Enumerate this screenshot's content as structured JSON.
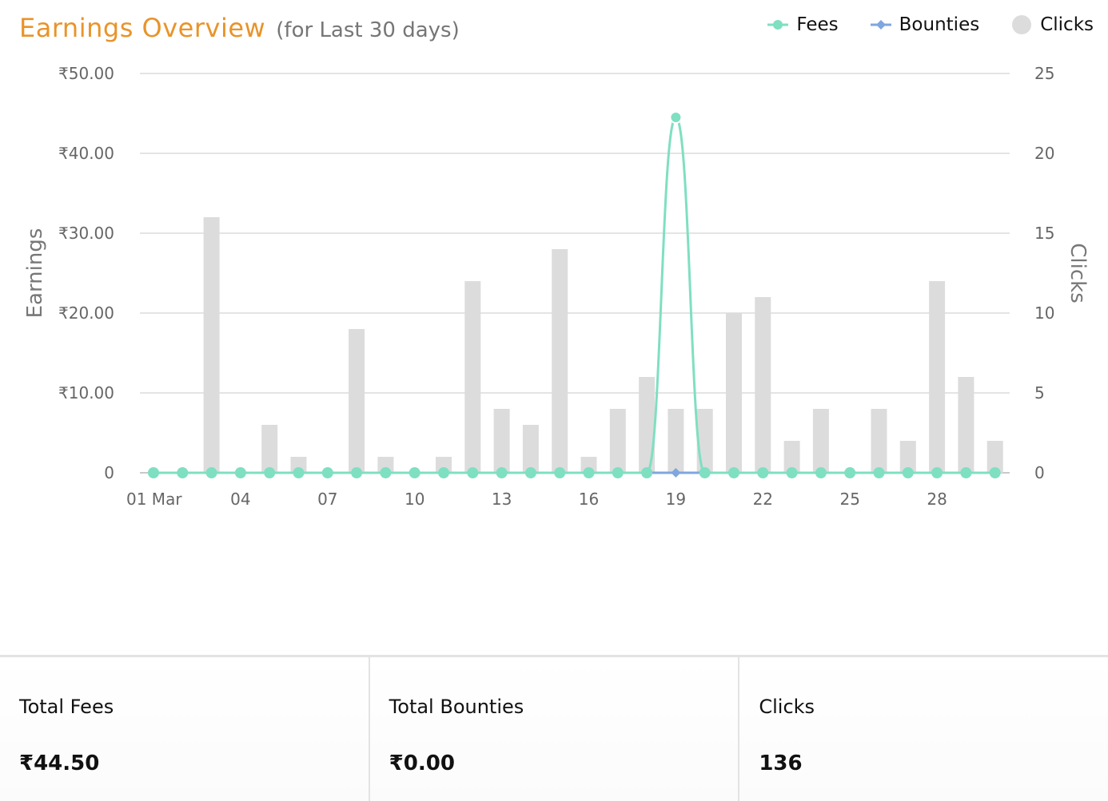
{
  "header": {
    "title": "Earnings Overview",
    "subtitle": "(for Last 30 days)"
  },
  "legend": {
    "fees": "Fees",
    "bounties": "Bounties",
    "clicks": "Clicks"
  },
  "colors": {
    "fees": "#7fdfc1",
    "bounties": "#7fa6e0",
    "clicks": "#dcdcdc",
    "title": "#e8942a"
  },
  "summary": {
    "total_fees_label": "Total Fees",
    "total_fees_value": "₹44.50",
    "total_bounties_label": "Total Bounties",
    "total_bounties_value": "₹0.00",
    "clicks_label": "Clicks",
    "clicks_value": "136"
  },
  "chart_data": {
    "type": "bar",
    "x_tick_labels": [
      "01 Mar",
      "04",
      "07",
      "10",
      "13",
      "16",
      "19",
      "22",
      "25",
      "28"
    ],
    "x_tick_indices": [
      0,
      3,
      6,
      9,
      12,
      15,
      18,
      21,
      24,
      27
    ],
    "n_days": 30,
    "y_left": {
      "label": "Earnings",
      "range": [
        0,
        50
      ],
      "ticks": [
        0,
        10,
        20,
        30,
        40,
        50
      ],
      "tick_labels": [
        "0",
        "₹10.00",
        "₹20.00",
        "₹30.00",
        "₹40.00",
        "₹50.00"
      ]
    },
    "y_right": {
      "label": "Clicks",
      "range": [
        0,
        25
      ],
      "ticks": [
        0,
        5,
        10,
        15,
        20,
        25
      ],
      "tick_labels": [
        "0",
        "5",
        "10",
        "15",
        "20",
        "25"
      ]
    },
    "grid": true,
    "legend_position": "top-right",
    "series": [
      {
        "name": "Clicks",
        "kind": "bar",
        "axis": "right",
        "values": [
          0,
          0,
          16,
          0,
          3,
          1,
          0,
          9,
          1,
          0,
          1,
          12,
          4,
          3,
          14,
          1,
          4,
          6,
          4,
          4,
          10,
          11,
          2,
          4,
          0,
          4,
          2,
          12,
          6,
          2
        ]
      },
      {
        "name": "Fees",
        "kind": "line",
        "axis": "left",
        "values": [
          0,
          0,
          0,
          0,
          0,
          0,
          0,
          0,
          0,
          0,
          0,
          0,
          0,
          0,
          0,
          0,
          0,
          0,
          44.5,
          0,
          0,
          0,
          0,
          0,
          0,
          0,
          0,
          0,
          0,
          0
        ]
      },
      {
        "name": "Bounties",
        "kind": "line",
        "axis": "left",
        "values": [
          0,
          0,
          0,
          0,
          0,
          0,
          0,
          0,
          0,
          0,
          0,
          0,
          0,
          0,
          0,
          0,
          0,
          0,
          0,
          0,
          0,
          0,
          0,
          0,
          0,
          0,
          0,
          0,
          0,
          0
        ]
      }
    ]
  }
}
